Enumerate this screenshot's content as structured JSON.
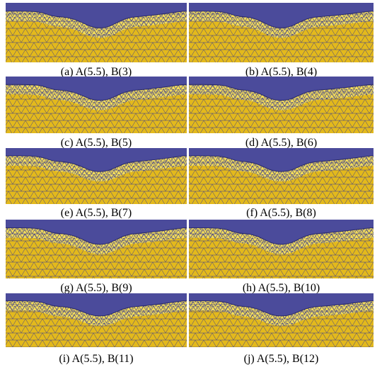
{
  "panels": [
    {
      "caption": "(a)  A(5.5),  B(3)"
    },
    {
      "caption": "(b)  A(5.5),  B(4)"
    },
    {
      "caption": "(c)  A(5.5),  B(5)"
    },
    {
      "caption": "(d)  A(5.5),  B(6)"
    },
    {
      "caption": "(e)  A(5.5),  B(7)"
    },
    {
      "caption": "(f)  A(5.5),  B(8)"
    },
    {
      "caption": "(g)  A(5.5),  B(9)"
    },
    {
      "caption": "(h)  A(5.5),  B(10)"
    },
    {
      "caption": "(i)  A(5.5),  B(11)"
    },
    {
      "caption": "(j)  A(5.5),  B(12)"
    }
  ]
}
